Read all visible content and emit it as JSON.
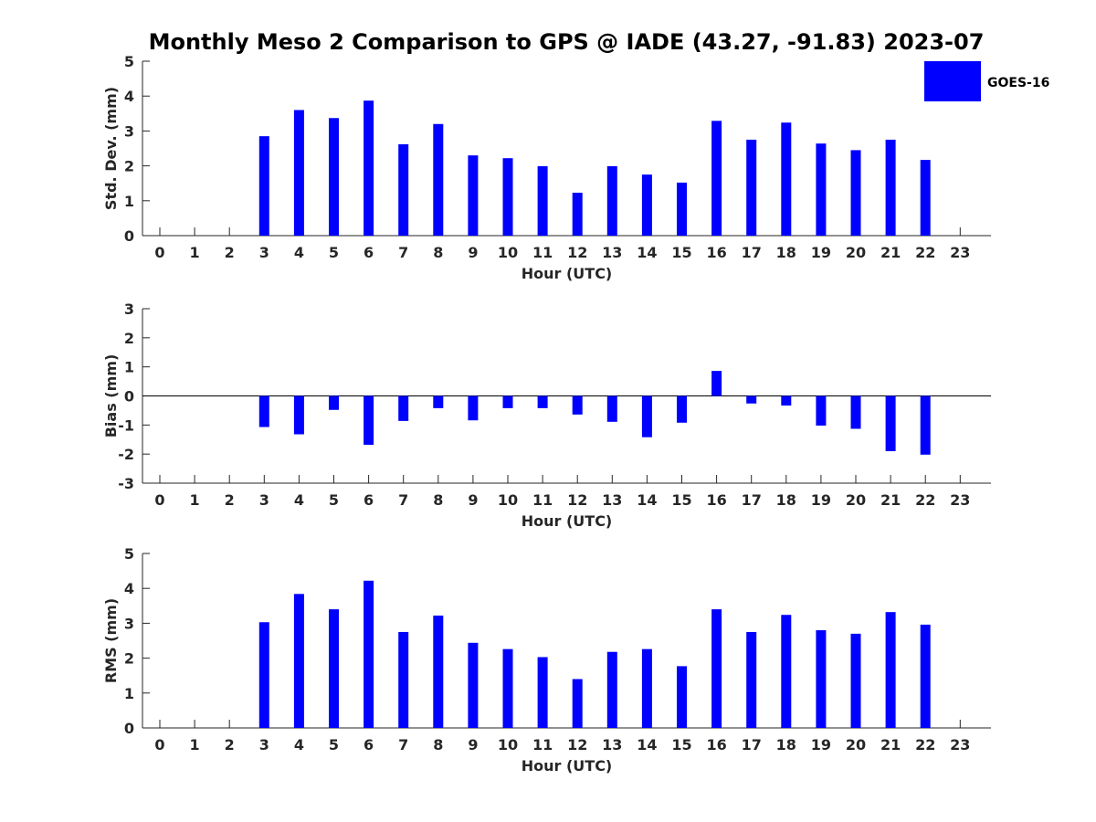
{
  "chart_data": {
    "type": "bar",
    "title": "Monthly Meso 2 Comparison to GPS @ IADE (43.27, -91.83) 2023-07",
    "legend": {
      "entries": [
        "GOES-16"
      ],
      "placement": "top-right"
    },
    "colors": {
      "bar": "#0000ff",
      "axis": "#262626",
      "title": "#000000"
    },
    "categories": [
      0,
      1,
      2,
      3,
      4,
      5,
      6,
      7,
      8,
      9,
      10,
      11,
      12,
      13,
      14,
      15,
      16,
      17,
      18,
      19,
      20,
      21,
      22,
      23
    ],
    "panels": [
      {
        "id": "std",
        "ylabel": "Std. Dev. (mm)",
        "xlabel": "Hour (UTC)",
        "ylim": [
          0,
          5
        ],
        "yticks": [
          0,
          1,
          2,
          3,
          4,
          5
        ],
        "zero_line": false,
        "series": [
          {
            "name": "GOES-16",
            "values": [
              null,
              null,
              null,
              2.85,
              3.6,
              3.37,
              3.87,
              2.62,
              3.2,
              2.3,
              2.22,
              1.99,
              1.23,
              1.99,
              1.75,
              1.52,
              3.29,
              2.75,
              3.24,
              2.64,
              2.45,
              2.75,
              2.17,
              null
            ]
          }
        ]
      },
      {
        "id": "bias",
        "ylabel": "Bias (mm)",
        "xlabel": "Hour (UTC)",
        "ylim": [
          -3,
          3
        ],
        "yticks": [
          -3,
          -2,
          -1,
          0,
          1,
          2,
          3
        ],
        "zero_line": true,
        "series": [
          {
            "name": "GOES-16",
            "values": [
              null,
              null,
              null,
              -1.07,
              -1.32,
              -0.48,
              -1.68,
              -0.86,
              -0.42,
              -0.84,
              -0.42,
              -0.42,
              -0.64,
              -0.89,
              -1.42,
              -0.92,
              0.86,
              -0.26,
              -0.33,
              -1.02,
              -1.13,
              -1.9,
              -2.02,
              null
            ]
          }
        ]
      },
      {
        "id": "rms",
        "ylabel": "RMS (mm)",
        "xlabel": "Hour (UTC)",
        "ylim": [
          0,
          5
        ],
        "yticks": [
          0,
          1,
          2,
          3,
          4,
          5
        ],
        "zero_line": false,
        "series": [
          {
            "name": "GOES-16",
            "values": [
              null,
              null,
              null,
              3.03,
              3.84,
              3.4,
              4.22,
              2.75,
              3.22,
              2.44,
              2.26,
              2.03,
              1.4,
              2.18,
              2.26,
              1.77,
              3.4,
              2.75,
              3.24,
              2.8,
              2.7,
              3.32,
              2.96,
              null
            ]
          }
        ]
      }
    ]
  }
}
